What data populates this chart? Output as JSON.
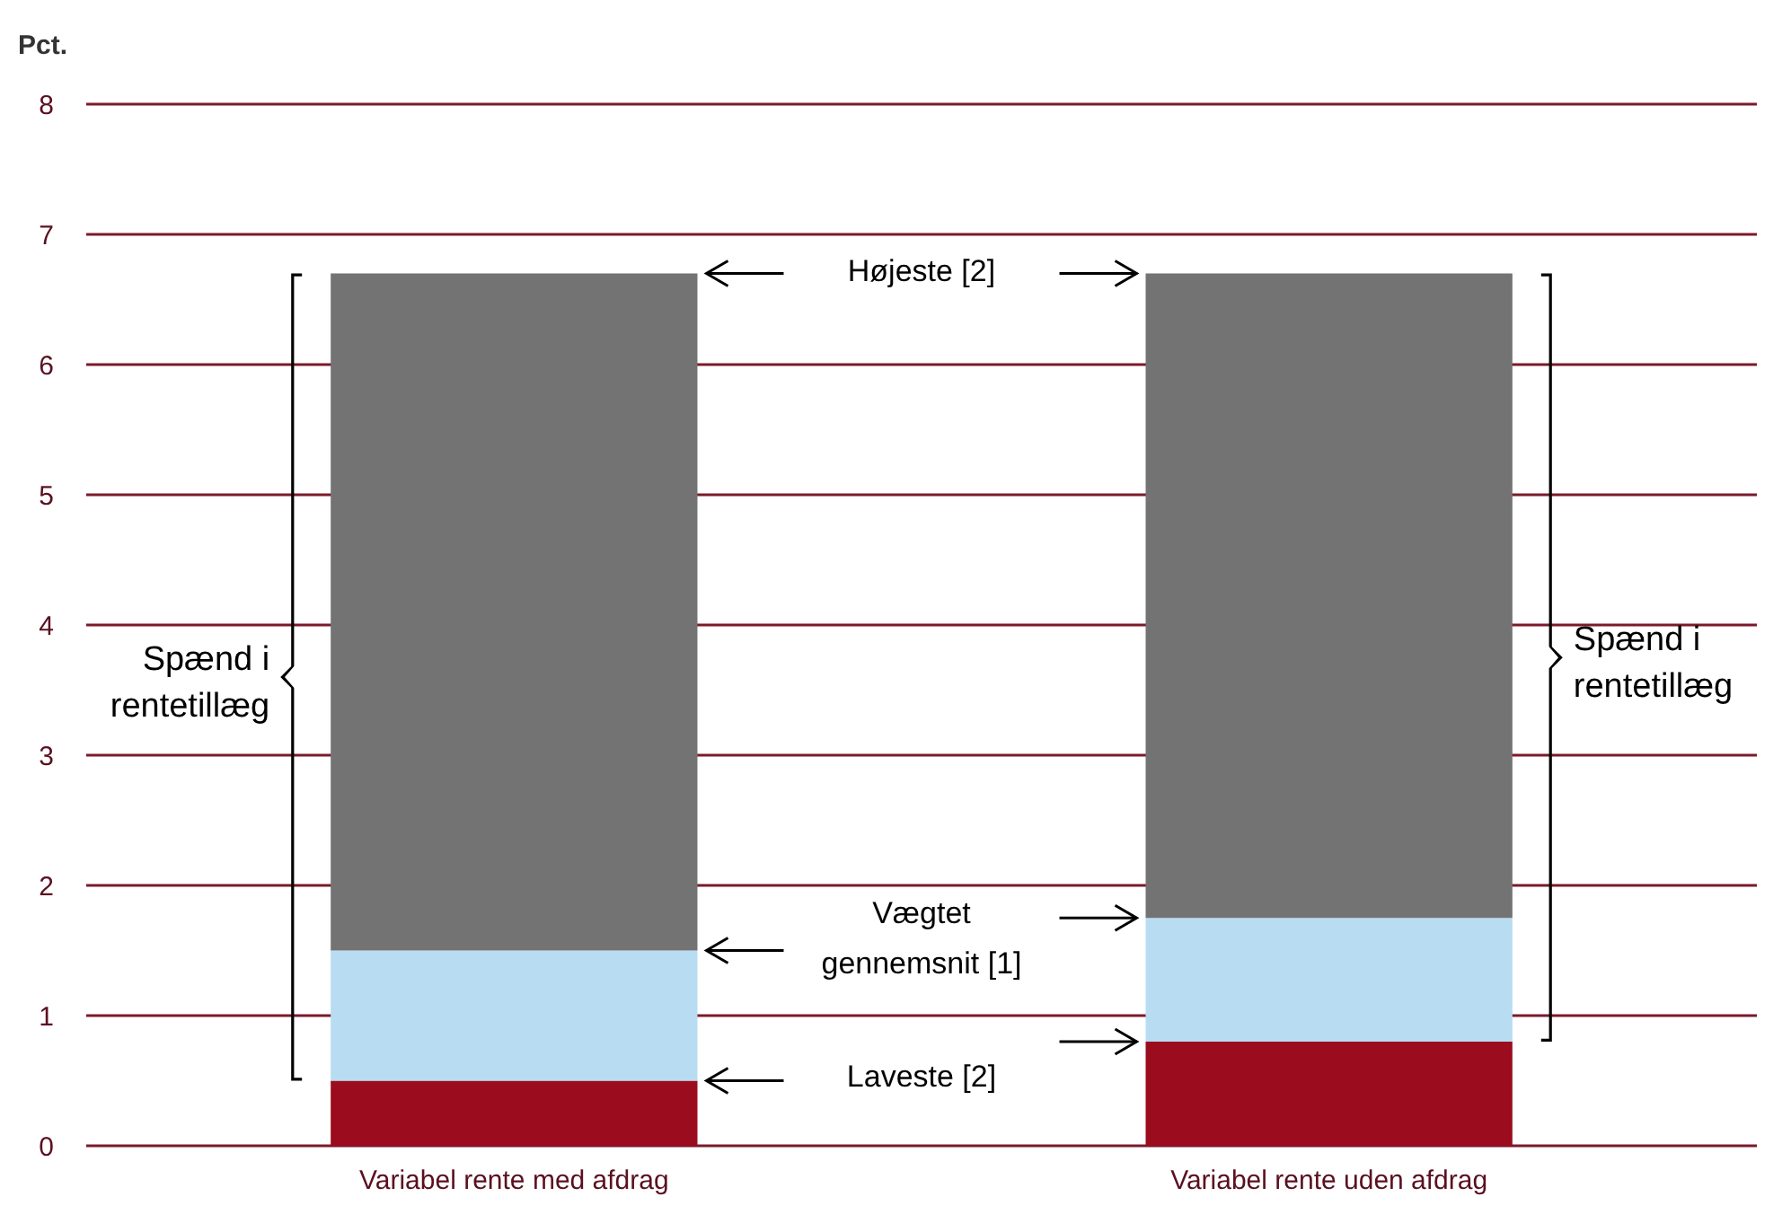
{
  "chart_data": {
    "type": "bar",
    "stacked": true,
    "ylabel": "Pct.",
    "categories": [
      "Variabel rente med afdrag",
      "Variabel rente uden afdrag"
    ],
    "series": [
      {
        "color": "#9b0c1e",
        "values": [
          0.5,
          0.8
        ]
      },
      {
        "color": "#b8dcf2",
        "values": [
          1.0,
          0.95
        ]
      },
      {
        "color": "#737373",
        "values": [
          5.2,
          4.95
        ]
      }
    ],
    "ylim": [
      0,
      8
    ],
    "yticks": [
      0,
      1,
      2,
      3,
      4,
      5,
      6,
      7,
      8
    ],
    "grid": "y",
    "annotations": [
      "Højeste [2]",
      "Vægtet gennemsnit [1]",
      "Laveste [2]",
      "Spænd i rentetillæg",
      "Spænd i rentetillæg"
    ]
  }
}
